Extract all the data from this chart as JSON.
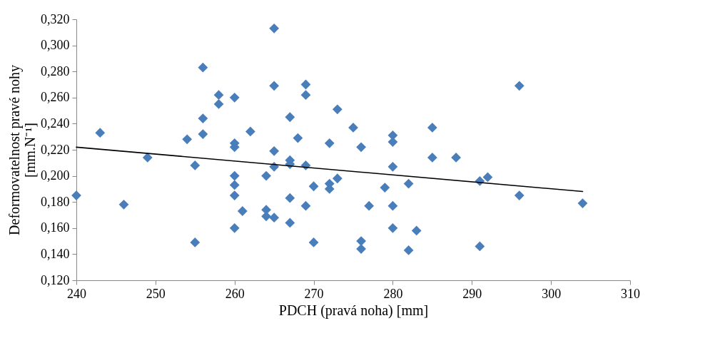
{
  "chart_data": {
    "type": "scatter",
    "xlabel": "PDCH (pravá noha) [mm]",
    "ylabel": "Deformovatelnost pravé nohy\n[mm.N⁻¹]",
    "xlim": [
      240,
      310
    ],
    "xticks": [
      240,
      250,
      260,
      270,
      280,
      290,
      300,
      310
    ],
    "ylim": [
      0.12,
      0.32
    ],
    "yticks": [
      {
        "value": 0.12,
        "label": "0,120"
      },
      {
        "value": 0.14,
        "label": "0,140"
      },
      {
        "value": 0.16,
        "label": "0,160"
      },
      {
        "value": 0.18,
        "label": "0,180"
      },
      {
        "value": 0.2,
        "label": "0,200"
      },
      {
        "value": 0.22,
        "label": "0,220"
      },
      {
        "value": 0.24,
        "label": "0,240"
      },
      {
        "value": 0.26,
        "label": "0,260"
      },
      {
        "value": 0.28,
        "label": "0,280"
      },
      {
        "value": 0.3,
        "label": "0,300"
      },
      {
        "value": 0.32,
        "label": "0,320"
      }
    ],
    "grid": false,
    "marker": "diamond",
    "series": [
      {
        "color": "#4a7ebb",
        "x": [
          240,
          243,
          246,
          249,
          254,
          255,
          255,
          256,
          256,
          256,
          258,
          258,
          260,
          260,
          260,
          260,
          260,
          260,
          260,
          261,
          262,
          264,
          264,
          264,
          265,
          265,
          265,
          265,
          265,
          267,
          267,
          267,
          267,
          267,
          268,
          269,
          269,
          269,
          269,
          270,
          270,
          272,
          272,
          272,
          273,
          273,
          275,
          276,
          276,
          276,
          277,
          279,
          280,
          280,
          280,
          280,
          280,
          282,
          282,
          283,
          285,
          285,
          288,
          291,
          291,
          292,
          296,
          296,
          304
        ],
        "values": [
          0.185,
          0.233,
          0.178,
          0.214,
          0.228,
          0.208,
          0.149,
          0.283,
          0.244,
          0.232,
          0.262,
          0.255,
          0.26,
          0.225,
          0.222,
          0.2,
          0.193,
          0.185,
          0.16,
          0.173,
          0.234,
          0.2,
          0.174,
          0.169,
          0.313,
          0.269,
          0.219,
          0.207,
          0.168,
          0.245,
          0.212,
          0.209,
          0.183,
          0.164,
          0.229,
          0.27,
          0.262,
          0.208,
          0.177,
          0.192,
          0.149,
          0.225,
          0.194,
          0.19,
          0.251,
          0.198,
          0.237,
          0.222,
          0.15,
          0.144,
          0.177,
          0.191,
          0.231,
          0.226,
          0.207,
          0.177,
          0.16,
          0.194,
          0.143,
          0.158,
          0.237,
          0.214,
          0.214,
          0.196,
          0.146,
          0.199,
          0.269,
          0.185,
          0.179
        ]
      },
      {
        "type": "line",
        "color": "#000000",
        "marker": "none",
        "line_style": "solid",
        "x": [
          240,
          304
        ],
        "values": [
          0.222,
          0.188
        ]
      }
    ]
  }
}
